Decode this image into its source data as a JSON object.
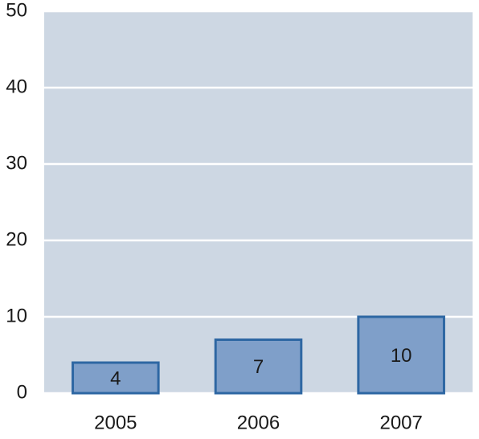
{
  "chart_data": {
    "type": "bar",
    "categories": [
      "2005",
      "2006",
      "2007"
    ],
    "values": [
      4,
      7,
      10
    ],
    "color": "#7f9fc9",
    "edge_color": "#2e67a3",
    "background": "#cdd7e3",
    "ylim": [
      0,
      50
    ],
    "yticks": [
      0,
      10,
      20,
      30,
      40,
      50
    ],
    "grid": true,
    "data_labels": true
  }
}
